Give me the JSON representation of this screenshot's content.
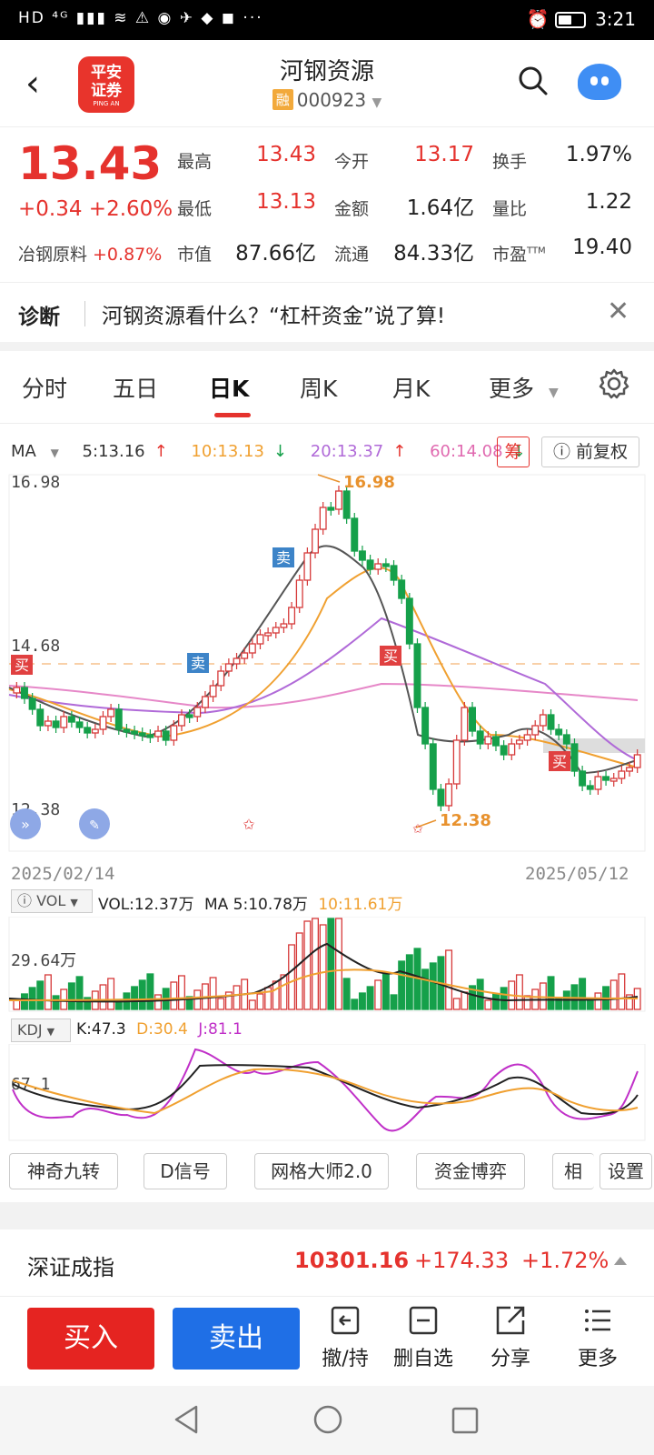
{
  "status_bar": {
    "left": "HD ⁴ᴳ ▮▮▮ ≋ ⚠ ◉ ✈ ◆ ◼ ···",
    "time": "3:21"
  },
  "header": {
    "title": "河钢资源",
    "badge": "融",
    "code": "000923",
    "logo_top": "平安",
    "logo_mid": "证券",
    "logo_sub": "PING AN"
  },
  "quote": {
    "price": "13.43",
    "change": "+0.34",
    "change_pct": "+2.60%",
    "sector_name": "冶钢原料",
    "sector_pct": "+0.87%",
    "fields": [
      {
        "label": "最高",
        "value": "13.43",
        "color": "red"
      },
      {
        "label": "今开",
        "value": "13.17",
        "color": "red"
      },
      {
        "label": "换手",
        "value": "1.97%",
        "color": "dark"
      },
      {
        "label": "最低",
        "value": "13.13",
        "color": "red"
      },
      {
        "label": "金额",
        "value": "1.64亿",
        "color": "dark"
      },
      {
        "label": "量比",
        "value": "1.22",
        "color": "dark"
      },
      {
        "label": "市值",
        "value": "87.66亿",
        "color": "dark"
      },
      {
        "label": "流通",
        "value": "84.33亿",
        "color": "dark"
      },
      {
        "label": "市盈",
        "value": "19.40",
        "color": "dark",
        "sup": "TTM"
      }
    ]
  },
  "diagnosis": {
    "label": "诊断",
    "text": "河钢资源看什么？“杠杆资金”说了算!"
  },
  "tabs": [
    {
      "label": "分时"
    },
    {
      "label": "五日"
    },
    {
      "label": "日K"
    },
    {
      "label": "周K"
    },
    {
      "label": "月K"
    },
    {
      "label": "更多"
    }
  ],
  "ma": {
    "label": "MA",
    "items": [
      {
        "text": "5:13.16",
        "arrow": "↑",
        "color": "#333333",
        "arrow_color": "#e5322d"
      },
      {
        "text": "10:13.13",
        "arrow": "↓",
        "color": "#f0a030",
        "arrow_color": "#15a04a"
      },
      {
        "text": "20:13.37",
        "arrow": "↑",
        "color": "#b06ad8",
        "arrow_color": "#e5322d"
      },
      {
        "text": "60:14.08",
        "arrow": "↓",
        "color": "#e06ab0",
        "arrow_color": "#15a04a"
      }
    ],
    "chou": "筹",
    "fuquan": "前复权"
  },
  "chart": {
    "y_top": "16.98",
    "y_mid": "14.68",
    "y_bot": "12.38",
    "high_ann": "16.98",
    "low_ann": "12.38",
    "date_start": "2025/02/14",
    "date_end": "2025/05/12",
    "sig_buy": "买",
    "sig_sell": "卖"
  },
  "vol": {
    "sel": "VOL",
    "vol_text": "VOL:12.37万",
    "ma5_text": "MA 5:10.78万",
    "ma10_text": "10:11.61万",
    "axis": "29.64万"
  },
  "kdj": {
    "sel": "KDJ",
    "k": "K:47.3",
    "d": "D:30.4",
    "j": "J:81.1",
    "axis": "67.1"
  },
  "tools": [
    "神奇九转",
    "D信号",
    "网格大师2.0",
    "资金博弈",
    "相似",
    "设置"
  ],
  "index": {
    "name": "深证成指",
    "value": "10301.16",
    "change": "+174.33",
    "pct": "+1.72%"
  },
  "actions": {
    "buy": "买入",
    "sell": "卖出",
    "items": [
      "撤/持",
      "删自选",
      "分享",
      "更多"
    ]
  },
  "chart_data": {
    "type": "candlestick",
    "x_range": [
      "2025/02/14",
      "2025/05/12"
    ],
    "ylim": [
      12.38,
      16.98
    ],
    "y_ticks": [
      16.98,
      14.68,
      12.38
    ],
    "high": 16.98,
    "low": 12.38,
    "ma_latest": {
      "MA5": 13.16,
      "MA10": 13.13,
      "MA20": 13.37,
      "MA60": 14.08
    },
    "volume": {
      "latest": "12.37万",
      "MA5": "10.78万",
      "MA10": "11.61万",
      "axis_max": "29.64万"
    },
    "kdj": {
      "K": 47.3,
      "D": 30.4,
      "J": 81.1
    }
  }
}
